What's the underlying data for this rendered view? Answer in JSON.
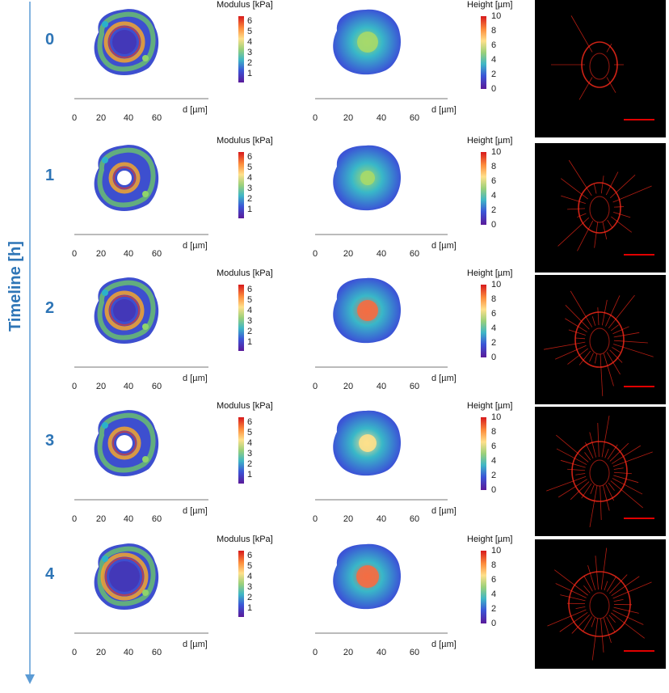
{
  "figure": {
    "timeline_label": "Timeline [h]",
    "modulus_title": "Modulus [kPa]",
    "height_title": "Height [µm]",
    "axis_unit": "d [µm]",
    "modulus_ticks": [
      "6",
      "5",
      "4",
      "3",
      "2",
      "1"
    ],
    "height_ticks": [
      "10",
      "8",
      "6",
      "4",
      "2",
      "0"
    ],
    "axis_ticks": [
      "0",
      "20",
      "40",
      "60"
    ],
    "rows": [
      {
        "time": "0"
      },
      {
        "time": "1"
      },
      {
        "time": "2"
      },
      {
        "time": "3"
      },
      {
        "time": "4"
      }
    ],
    "colors": {
      "accent": "#2e75b6",
      "scale_bar": "#e00000",
      "fluor": "#ff2a1a"
    }
  },
  "chart_data": [
    {
      "type": "heatmap",
      "title": "Modulus [kPa]",
      "xlabel": "d [µm]",
      "x_ticks": [
        0,
        20,
        40,
        60
      ],
      "colorbar_ticks": [
        1,
        2,
        3,
        4,
        5,
        6
      ],
      "rows_time_h": [
        0,
        1,
        2,
        3,
        4
      ]
    },
    {
      "type": "heatmap",
      "title": "Height [µm]",
      "xlabel": "d [µm]",
      "x_ticks": [
        0,
        20,
        40,
        60
      ],
      "colorbar_ticks": [
        0,
        2,
        4,
        6,
        8,
        10
      ],
      "rows_time_h": [
        0,
        1,
        2,
        3,
        4
      ]
    }
  ]
}
